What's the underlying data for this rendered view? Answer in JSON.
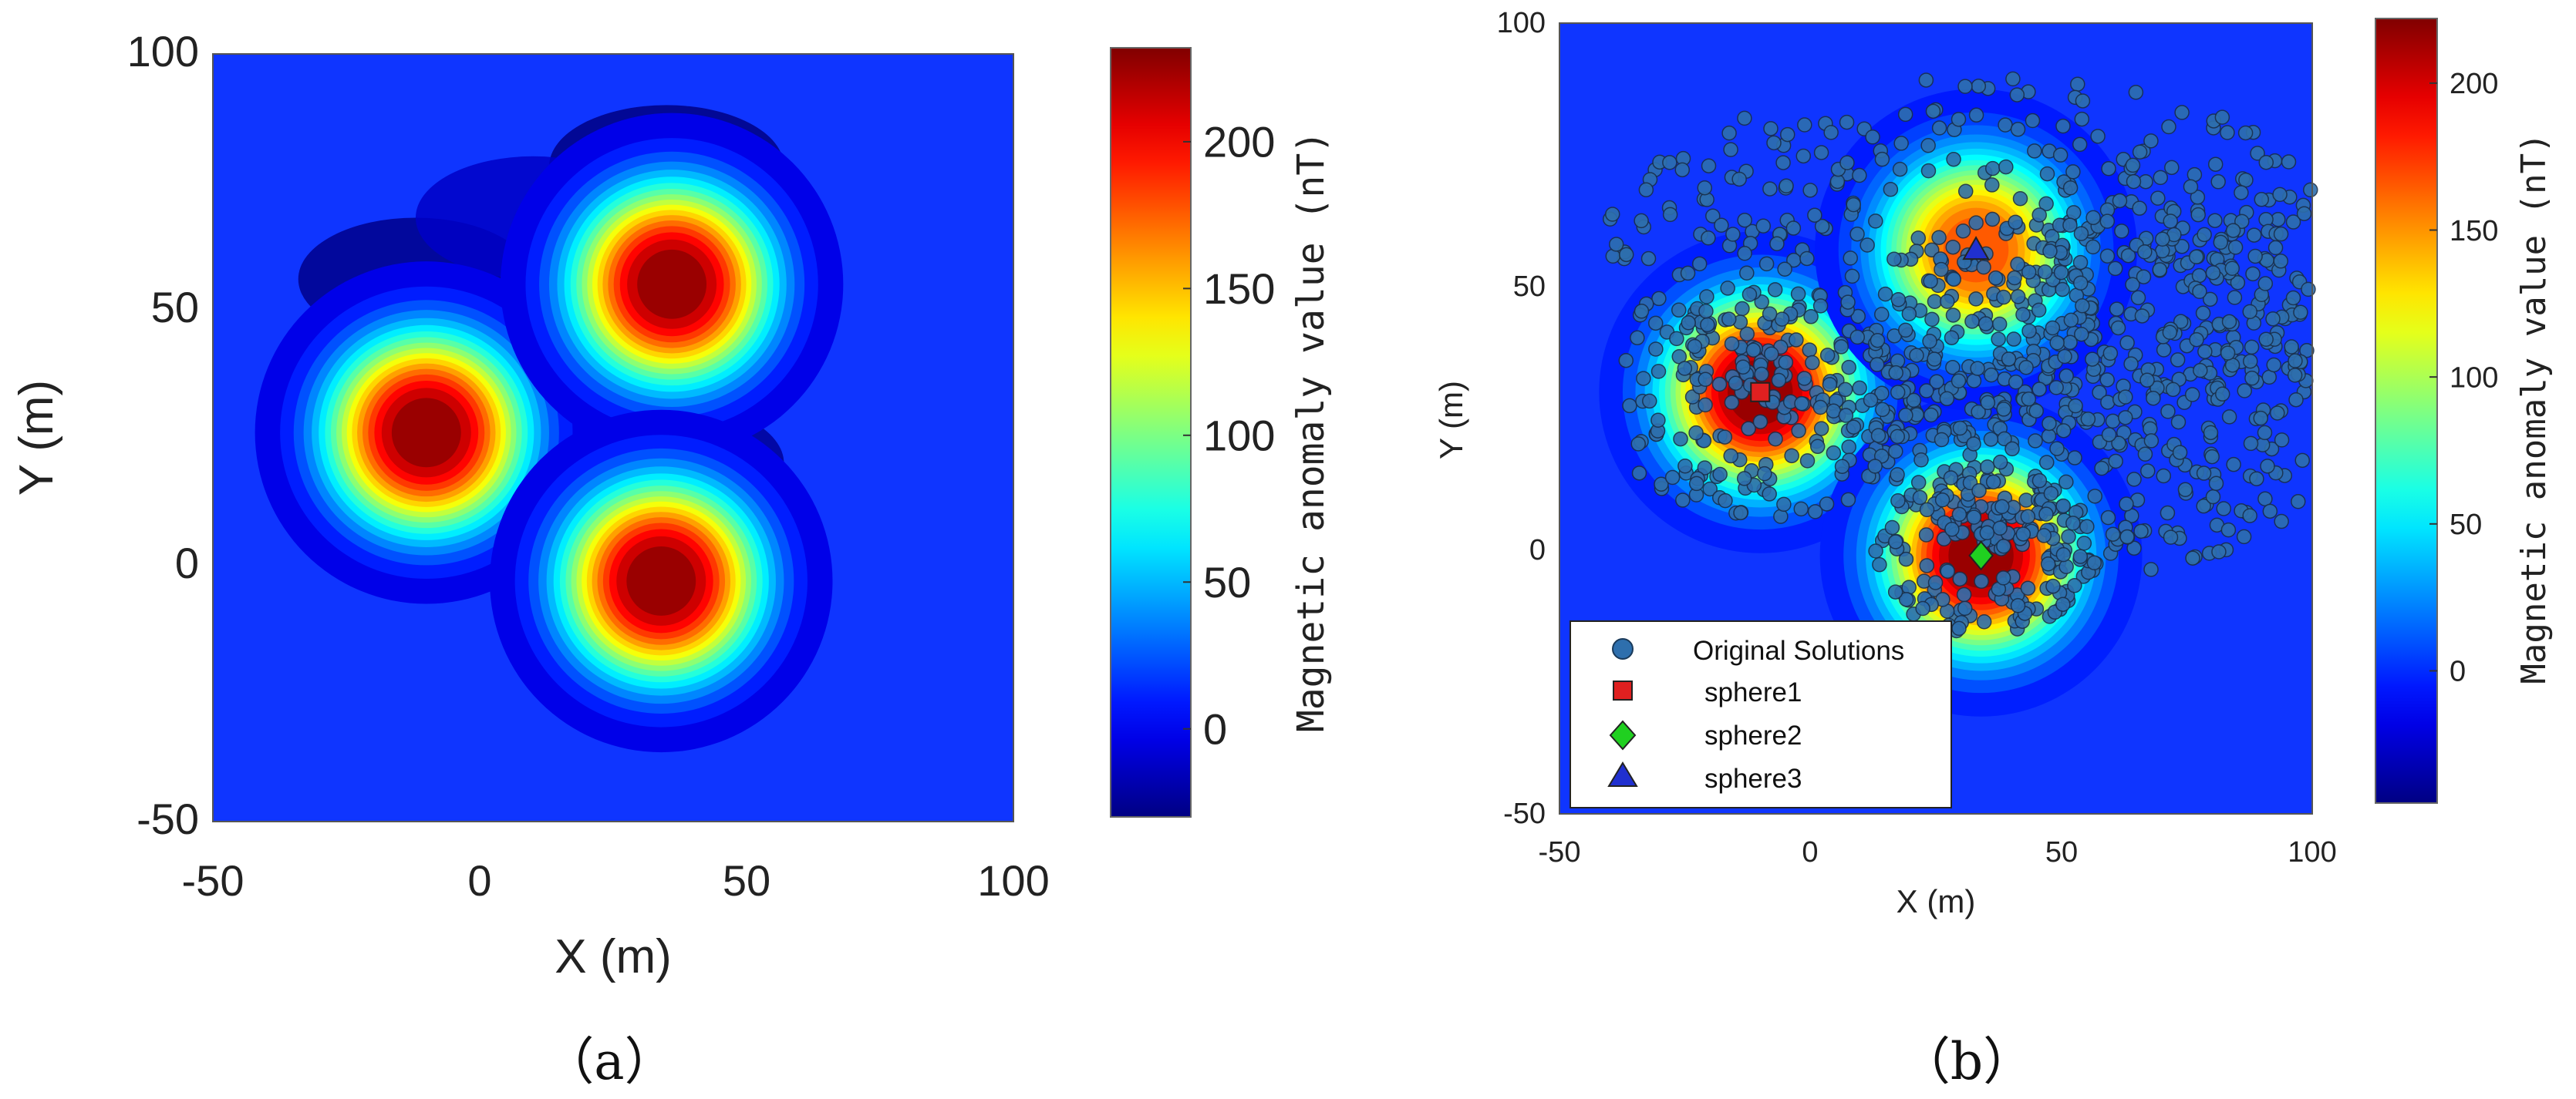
{
  "chart_data": [
    {
      "id": "a",
      "type": "heatmap",
      "caption": "（a）",
      "xlabel": "X (m)",
      "ylabel": "Y (m)",
      "xlim": [
        -50,
        100
      ],
      "ylim": [
        -50,
        100
      ],
      "xticks": [
        "-50",
        "0",
        "50",
        "100"
      ],
      "yticks": [
        "-50",
        "0",
        "50",
        "100"
      ],
      "colorbar": {
        "label": "Magnetic  anomaly  value  (nT)",
        "range": [
          -30,
          232
        ],
        "ticks": [
          "0",
          "50",
          "100",
          "150",
          "200"
        ],
        "colormap": "jet"
      },
      "anomalies": [
        {
          "x": -10,
          "y": 26,
          "peak": 232
        },
        {
          "x": 36,
          "y": 55,
          "peak": 232
        },
        {
          "x": 34,
          "y": -3,
          "peak": 232
        }
      ],
      "lows": [
        {
          "x": 35,
          "y": 78,
          "value": -30
        },
        {
          "x": -12,
          "y": 56,
          "value": -28
        },
        {
          "x": 35,
          "y": 20,
          "value": -25
        },
        {
          "x": 10,
          "y": 68,
          "value": -12
        }
      ]
    },
    {
      "id": "b",
      "type": "heatmap",
      "caption": "（b）",
      "xlabel": "X (m)",
      "ylabel": "Y (m)",
      "xlim": [
        -50,
        100
      ],
      "ylim": [
        -50,
        100
      ],
      "xticks": [
        "-50",
        "0",
        "50",
        "100"
      ],
      "yticks": [
        "-50",
        "0",
        "50",
        "100"
      ],
      "colorbar": {
        "label": "Magnetic  anomaly  value  (nT)",
        "range": [
          -45,
          222
        ],
        "ticks": [
          "0",
          "50",
          "100",
          "150",
          "200"
        ],
        "colormap": "jet"
      },
      "overlay": {
        "type": "scatter",
        "series_name": "Original Solutions",
        "marker": "circle",
        "color": "#2e6fad",
        "clusters": [
          {
            "x": -10,
            "y": 28,
            "spread": 14
          },
          {
            "x": 35,
            "y": 55,
            "spread": 22
          },
          {
            "x": 35,
            "y": 0,
            "spread": 10
          },
          {
            "x": 60,
            "y": 30,
            "spread": 22
          }
        ]
      },
      "markers": [
        {
          "name": "sphere1",
          "shape": "square",
          "color": "#e02020",
          "x": -10,
          "y": 30
        },
        {
          "name": "sphere2",
          "shape": "diamond",
          "color": "#20d020",
          "x": 34,
          "y": -1
        },
        {
          "name": "sphere3",
          "shape": "triangle",
          "color": "#2030d0",
          "x": 33,
          "y": 57
        }
      ],
      "legend": {
        "placement": "bottom-left",
        "entries": [
          "Original Solutions",
          "sphere1",
          "sphere2",
          "sphere3"
        ]
      }
    }
  ]
}
